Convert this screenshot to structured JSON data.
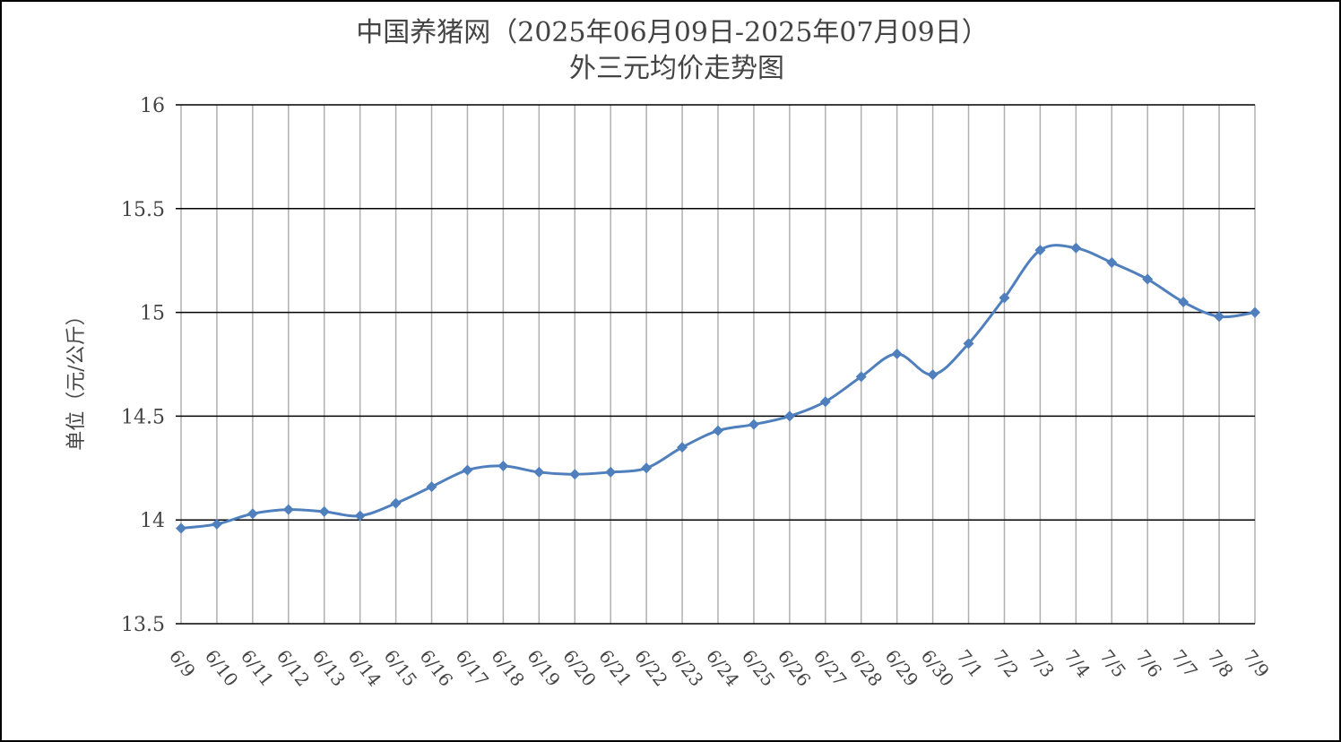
{
  "chart_data": {
    "type": "line",
    "title": "中国养猪网（2025年06月09日-2025年07月09日）",
    "subtitle": "外三元均价走势图",
    "y_label": "单位（元/公斤）",
    "categories": [
      "6/9",
      "6/10",
      "6/11",
      "6/12",
      "6/13",
      "6/14",
      "6/15",
      "6/16",
      "6/17",
      "6/18",
      "6/19",
      "6/20",
      "6/21",
      "6/22",
      "6/23",
      "6/24",
      "6/25",
      "6/26",
      "6/27",
      "6/28",
      "6/29",
      "6/30",
      "7/1",
      "7/2",
      "7/3",
      "7/4",
      "7/5",
      "7/6",
      "7/7",
      "7/8",
      "7/9"
    ],
    "series": [
      {
        "name": "外三元均价",
        "color": "#4f7fbd",
        "values": [
          13.96,
          13.98,
          14.03,
          14.05,
          14.04,
          14.02,
          14.08,
          14.16,
          14.24,
          14.26,
          14.23,
          14.22,
          14.23,
          14.25,
          14.35,
          14.43,
          14.46,
          14.5,
          14.57,
          14.69,
          14.8,
          14.7,
          14.85,
          15.07,
          15.3,
          15.31,
          15.24,
          15.16,
          15.05,
          14.98,
          15.0
        ]
      }
    ],
    "ylim": [
      13.5,
      16
    ],
    "yticks": [
      13.5,
      14,
      14.5,
      15,
      15.5,
      16
    ],
    "grid": true
  }
}
